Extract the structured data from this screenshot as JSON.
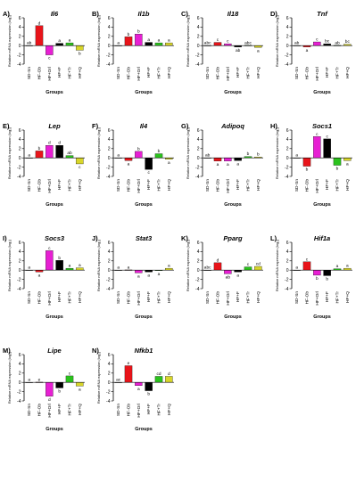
{
  "figure": {
    "groups": [
      "SD-Sn",
      "HF-Ob",
      "HF+Orl",
      "HF+F",
      "HF+Tr",
      "HF+Q"
    ],
    "colors": [
      "#ffffff",
      "#e8141a",
      "#e71fd3",
      "#000000",
      "#2bc21d",
      "#d8d62a"
    ],
    "xlabel": "Groups",
    "ylabel": "Relative mRNA expression (log₂)"
  },
  "chart_data": [
    {
      "type": "bar",
      "panel": "A)",
      "title": "Il6",
      "categories": [
        "SD-Sn",
        "HF-Ob",
        "HF+Orl",
        "HF+F",
        "HF+Tr",
        "HF+Q"
      ],
      "values": [
        0,
        4.3,
        -2.0,
        0.5,
        0.6,
        -1.0
      ],
      "letters": [
        "ab",
        "d",
        "c",
        "a",
        "a",
        "b"
      ],
      "ylim": [
        -4,
        6
      ],
      "yticks": [
        -4,
        -2,
        0,
        2,
        4,
        6
      ]
    },
    {
      "type": "bar",
      "panel": "B)",
      "title": "Il1b",
      "categories": [
        "SD-Sn",
        "HF-Ob",
        "HF+Orl",
        "HF+F",
        "HF+Tr",
        "HF+Q"
      ],
      "values": [
        0,
        1.9,
        2.5,
        0.7,
        0.6,
        0.6
      ],
      "letters": [
        "a",
        "b",
        "b",
        "a",
        "a",
        "a"
      ],
      "ylim": [
        -4,
        6
      ],
      "yticks": [
        -4,
        -2,
        0,
        2,
        4,
        6
      ]
    },
    {
      "type": "bar",
      "panel": "C)",
      "title": "Il18",
      "categories": [
        "SD-Sn",
        "HF-Ob",
        "HF+Orl",
        "HF+F",
        "HF+Tr",
        "HF+Q"
      ],
      "values": [
        0,
        0.7,
        0.4,
        -0.3,
        0.05,
        -0.4
      ],
      "letters": [
        "abc",
        "c",
        "c",
        "ab",
        "abc",
        "a"
      ],
      "ylim": [
        -4,
        6
      ],
      "yticks": [
        -4,
        -2,
        0,
        2,
        4,
        6
      ]
    },
    {
      "type": "bar",
      "panel": "D)",
      "title": "Tnf",
      "categories": [
        "SD-Sn",
        "HF-Ob",
        "HF+Orl",
        "HF+F",
        "HF+Tr",
        "HF+Q"
      ],
      "values": [
        0,
        -0.3,
        0.8,
        0.4,
        0.05,
        0.3
      ],
      "letters": [
        "ab",
        "a",
        "c",
        "bc",
        "ab",
        "bc"
      ],
      "ylim": [
        -4,
        6
      ],
      "yticks": [
        -4,
        -2,
        0,
        2,
        4,
        6
      ]
    },
    {
      "type": "bar",
      "panel": "E)",
      "title": "Lep",
      "categories": [
        "SD-Sn",
        "HF-Ob",
        "HF+Orl",
        "HF+F",
        "HF+Tr",
        "HF+Q"
      ],
      "values": [
        0,
        1.5,
        2.7,
        2.7,
        0.5,
        -1.3
      ],
      "letters": [
        "a",
        "b",
        "d",
        "d",
        "ab",
        "c"
      ],
      "ylim": [
        -4,
        6
      ],
      "yticks": [
        -4,
        -2,
        0,
        2,
        4,
        6
      ]
    },
    {
      "type": "bar",
      "panel": "F)",
      "title": "Il4",
      "categories": [
        "SD-Sn",
        "HF-Ob",
        "HF+Orl",
        "HF+F",
        "HF+Tr",
        "HF+Q"
      ],
      "values": [
        0,
        -0.6,
        1.4,
        -2.5,
        0.9,
        -0.3
      ],
      "letters": [
        "a",
        "a",
        "b",
        "c",
        "b",
        "a"
      ],
      "ylim": [
        -4,
        6
      ],
      "yticks": [
        -4,
        -2,
        0,
        2,
        4,
        6
      ]
    },
    {
      "type": "bar",
      "panel": "G)",
      "title": "Adipoq",
      "categories": [
        "SD-Sn",
        "HF-Ob",
        "HF+Orl",
        "HF+F",
        "HF+Tr",
        "HF+Q"
      ],
      "values": [
        0,
        -0.7,
        -0.7,
        -0.6,
        0.3,
        0.2
      ],
      "letters": [
        "ab",
        "a",
        "a",
        "a",
        "b",
        "b"
      ],
      "ylim": [
        -4,
        6
      ],
      "yticks": [
        -4,
        -2,
        0,
        2,
        4,
        6
      ]
    },
    {
      "type": "bar",
      "panel": "H)",
      "title": "Socs1",
      "categories": [
        "SD-Sn",
        "HF-Ob",
        "HF+Orl",
        "HF+F",
        "HF+Tr",
        "HF+Q"
      ],
      "values": [
        0,
        -1.8,
        4.6,
        4.1,
        -1.6,
        -0.6
      ],
      "letters": [
        "a",
        "b",
        "c",
        "c",
        "b",
        "a"
      ],
      "ylim": [
        -4,
        6
      ],
      "yticks": [
        -4,
        -2,
        0,
        2,
        4,
        6
      ]
    },
    {
      "type": "bar",
      "panel": "I)",
      "title": "Socs3",
      "categories": [
        "SD-Sn",
        "HF-Ob",
        "HF+Orl",
        "HF+F",
        "HF+Tr",
        "HF+Q"
      ],
      "values": [
        0,
        -0.4,
        4.2,
        2.1,
        0.4,
        0.5
      ],
      "letters": [
        "a",
        "a",
        "c",
        "b",
        "a",
        "a"
      ],
      "ylim": [
        -4,
        6
      ],
      "yticks": [
        -4,
        -2,
        0,
        2,
        4,
        6
      ]
    },
    {
      "type": "bar",
      "panel": "J)",
      "title": "Stat3",
      "categories": [
        "SD-Sn",
        "HF-Ob",
        "HF+Orl",
        "HF+F",
        "HF+Tr",
        "HF+Q"
      ],
      "values": [
        0,
        0.05,
        -0.6,
        -0.4,
        -0.05,
        0.4
      ],
      "letters": [
        "a",
        "a",
        "a",
        "a",
        "a",
        "a"
      ],
      "ylim": [
        -4,
        6
      ],
      "yticks": [
        -4,
        -2,
        0,
        2,
        4,
        6
      ]
    },
    {
      "type": "bar",
      "panel": "K)",
      "title": "Pparg",
      "categories": [
        "SD-Sn",
        "HF-Ob",
        "HF+Orl",
        "HF+F",
        "HF+Tr",
        "HF+Q"
      ],
      "values": [
        0,
        1.6,
        -0.8,
        -0.4,
        0.7,
        0.8
      ],
      "letters": [
        "abc",
        "d",
        "ab",
        "a",
        "c",
        "cd"
      ],
      "ylim": [
        -4,
        6
      ],
      "yticks": [
        -4,
        -2,
        0,
        2,
        4,
        6
      ]
    },
    {
      "type": "bar",
      "panel": "L)",
      "title": "Hif1a",
      "categories": [
        "SD-Sn",
        "HF-Ob",
        "HF+Orl",
        "HF+F",
        "HF+Tr",
        "HF+Q"
      ],
      "values": [
        0,
        1.8,
        -1.1,
        -1.2,
        0.3,
        0.4
      ],
      "letters": [
        "a",
        "c",
        "b",
        "b",
        "a",
        "a"
      ],
      "ylim": [
        -4,
        6
      ],
      "yticks": [
        -4,
        -2,
        0,
        2,
        4,
        6
      ]
    },
    {
      "type": "bar",
      "panel": "M)",
      "title": "Lipe",
      "categories": [
        "SD-Sn",
        "HF-Ob",
        "HF+Orl",
        "HF+F",
        "HF+Tr",
        "HF+Q"
      ],
      "values": [
        0,
        0.05,
        -3.0,
        -1.2,
        1.4,
        -0.8
      ],
      "letters": [
        "a",
        "e",
        "d",
        "b",
        "c",
        "a"
      ],
      "ylim": [
        -4,
        6
      ],
      "yticks": [
        -4,
        -2,
        0,
        2,
        4,
        6
      ]
    },
    {
      "type": "bar",
      "panel": "N)",
      "title": "Nfkb1",
      "categories": [
        "SD-Sn",
        "HF-Ob",
        "HF+Orl",
        "HF+F",
        "HF+Tr",
        "HF+Q"
      ],
      "values": [
        0,
        3.6,
        -0.7,
        -1.8,
        1.3,
        1.3
      ],
      "letters": [
        "ac",
        "e",
        "a",
        "b",
        "cd",
        "d"
      ],
      "ylim": [
        -4,
        6
      ],
      "yticks": [
        -4,
        -2,
        0,
        2,
        4,
        6
      ]
    }
  ]
}
